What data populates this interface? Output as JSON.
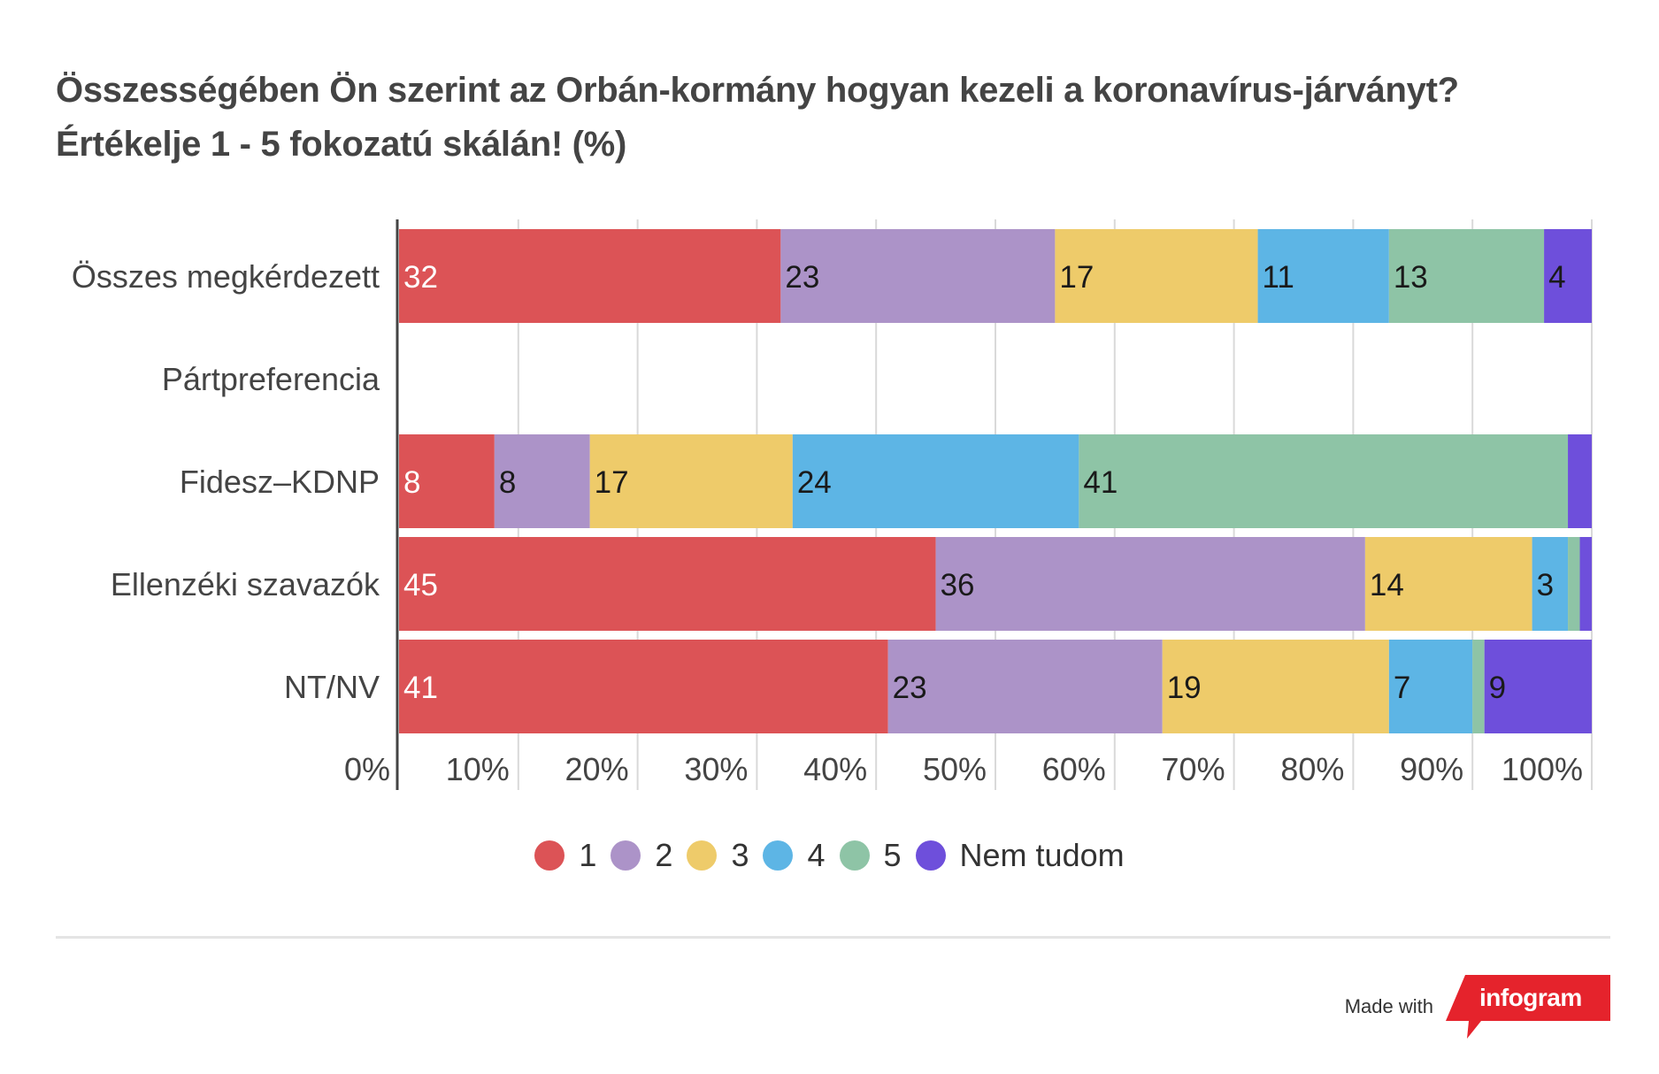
{
  "title": {
    "line1": "Összességében Ön szerint az Orbán-kormány hogyan kezeli a koronavírus-járványt?",
    "line2": "Értékelje 1 - 5 fokozatú skálán! (%)"
  },
  "colors": {
    "1": "#dc5356",
    "2": "#ac93c8",
    "3": "#eecb6a",
    "4": "#5db5e5",
    "5": "#8ec4a6",
    "Nem tudom": "#6e4fdb",
    "grid": "#d9d9d9",
    "axis": "#444444"
  },
  "chart_data": {
    "type": "bar",
    "orientation": "horizontal",
    "stacked": true,
    "categories": [
      "Összes megkérdezett",
      "Pártpreferencia",
      "Fidesz–KDNP",
      "Ellenzéki szavazók",
      "NT/NV"
    ],
    "series": [
      {
        "name": "1",
        "values": [
          32,
          null,
          8,
          45,
          41
        ],
        "labels": [
          "32",
          "",
          "8",
          "45",
          "41"
        ]
      },
      {
        "name": "2",
        "values": [
          23,
          null,
          8,
          36,
          23
        ],
        "labels": [
          "23",
          "",
          "8",
          "36",
          "23"
        ]
      },
      {
        "name": "3",
        "values": [
          17,
          null,
          17,
          14,
          19
        ],
        "labels": [
          "17",
          "",
          "17",
          "14",
          "19"
        ]
      },
      {
        "name": "4",
        "values": [
          11,
          null,
          24,
          3,
          7
        ],
        "labels": [
          "11",
          "",
          "24",
          "3",
          "7"
        ]
      },
      {
        "name": "5",
        "values": [
          13,
          null,
          41,
          1,
          1
        ],
        "labels": [
          "13",
          "",
          "41",
          "",
          ""
        ]
      },
      {
        "name": "Nem tudom",
        "values": [
          4,
          null,
          2,
          1,
          9
        ],
        "labels": [
          "4",
          "",
          "",
          "",
          "9"
        ]
      }
    ],
    "x_ticks": [
      "0%",
      "10%",
      "20%",
      "30%",
      "40%",
      "50%",
      "60%",
      "70%",
      "80%",
      "90%",
      "100%"
    ],
    "xlim": [
      0,
      100
    ],
    "grid": true,
    "legend_position": "bottom"
  },
  "footer": {
    "made_with": "Made with",
    "brand": "infogram"
  }
}
